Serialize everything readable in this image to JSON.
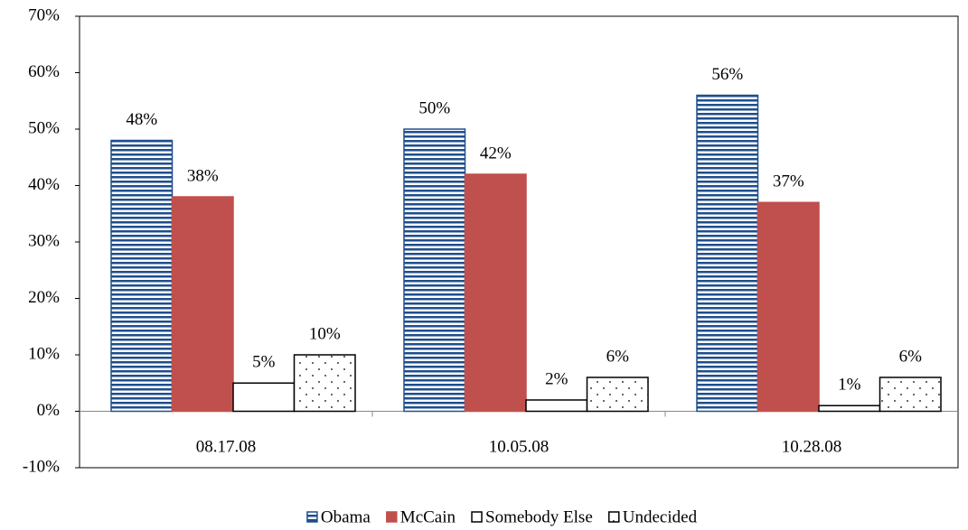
{
  "chart_data": {
    "type": "bar",
    "categories": [
      "08.17.08",
      "10.05.08",
      "10.28.08"
    ],
    "series": [
      {
        "name": "Obama",
        "color": "#1f4e8c",
        "pattern": "stripes",
        "values": [
          48,
          50,
          56
        ],
        "value_labels": [
          "48%",
          "50%",
          "56%"
        ]
      },
      {
        "name": "McCain",
        "color": "#c0504d",
        "pattern": "solid",
        "values": [
          38,
          42,
          37
        ],
        "value_labels": [
          "38%",
          "42%",
          "37%"
        ]
      },
      {
        "name": "Somebody Else",
        "color": "#000000",
        "pattern": "none",
        "values": [
          5,
          2,
          1
        ],
        "value_labels": [
          "5%",
          "2%",
          "1%"
        ]
      },
      {
        "name": "Undecided",
        "color": "#000000",
        "pattern": "dots",
        "values": [
          10,
          6,
          6
        ],
        "value_labels": [
          "10%",
          "6%",
          "6%"
        ]
      }
    ],
    "ylim": [
      -10,
      70
    ],
    "yticks": [
      {
        "value": -10,
        "label": "-10%"
      },
      {
        "value": 0,
        "label": "0%"
      },
      {
        "value": 10,
        "label": "10%"
      },
      {
        "value": 20,
        "label": "20%"
      },
      {
        "value": 30,
        "label": "30%"
      },
      {
        "value": 40,
        "label": "40%"
      },
      {
        "value": 50,
        "label": "50%"
      },
      {
        "value": 60,
        "label": "60%"
      },
      {
        "value": 70,
        "label": "70%"
      }
    ],
    "grid": false,
    "legend": "bottom"
  }
}
